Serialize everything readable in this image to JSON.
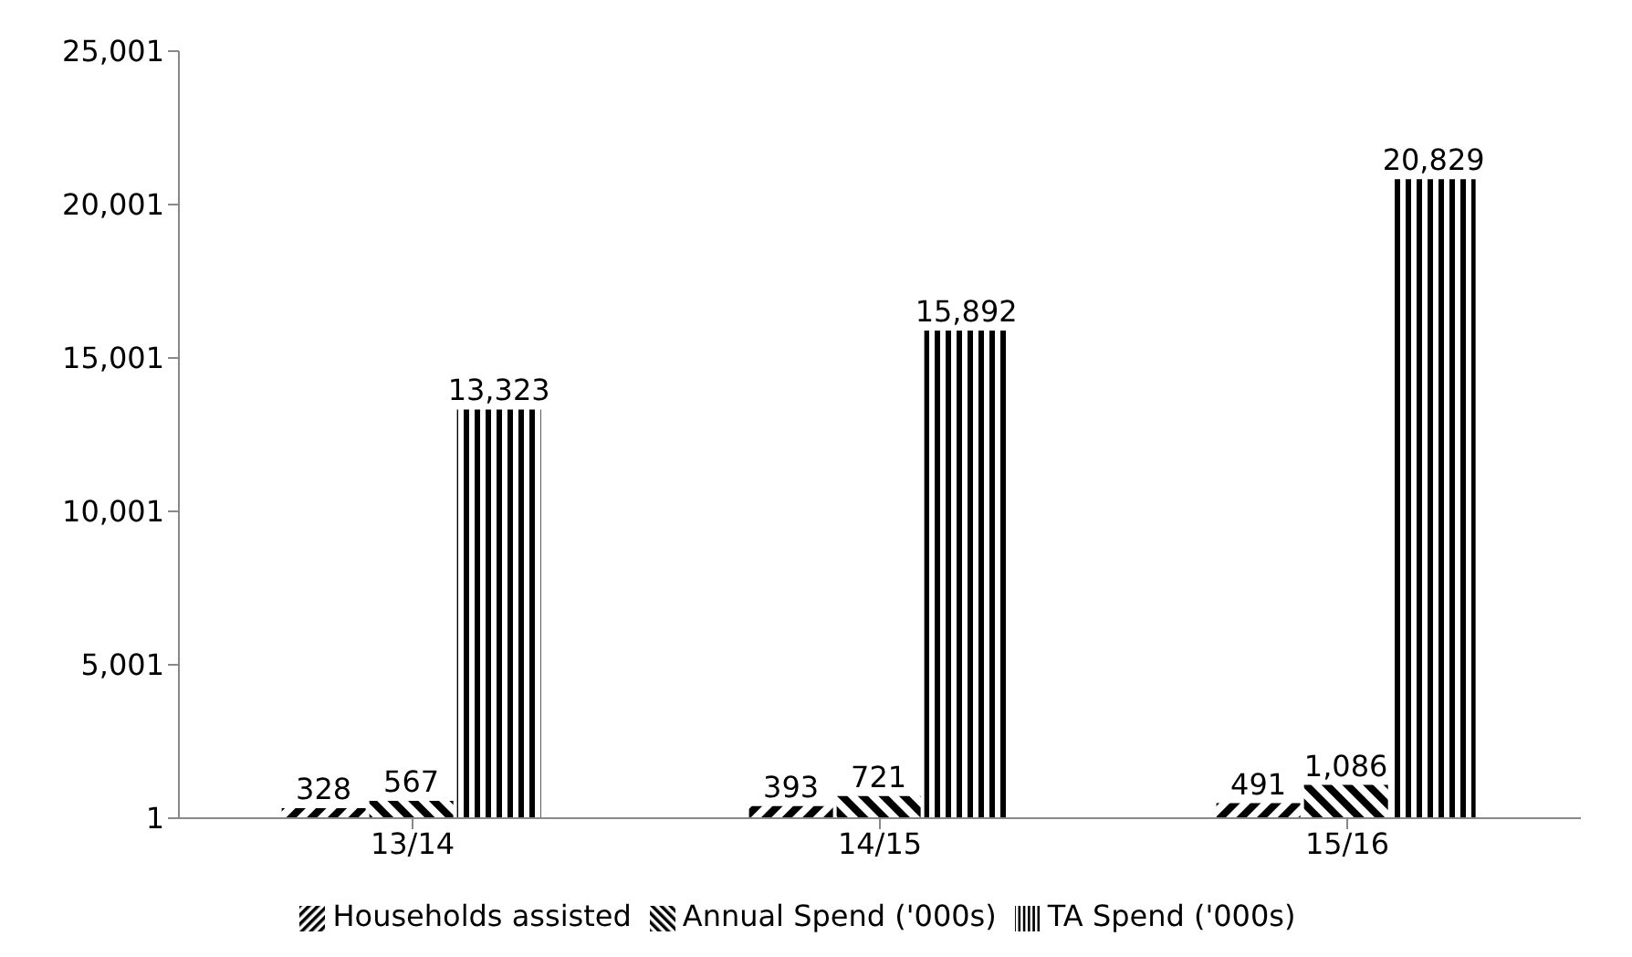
{
  "chart_data": {
    "type": "bar",
    "categories": [
      "13/14",
      "14/15",
      "15/16"
    ],
    "series": [
      {
        "name": "Households assisted",
        "color": "#000000",
        "values": [
          328,
          393,
          491
        ],
        "value_labels": [
          "328",
          "393",
          "491"
        ]
      },
      {
        "name": "Annual Spend ('000s)",
        "color": "#000000",
        "values": [
          567,
          721,
          1086
        ],
        "value_labels": [
          "567",
          "721",
          "1,086"
        ]
      },
      {
        "name": "TA Spend ('000s)",
        "color": "#000000",
        "values": [
          13323,
          15892,
          20829
        ],
        "value_labels": [
          "13,323",
          "15,892",
          "20,829"
        ]
      }
    ],
    "ylim": [
      1,
      25001
    ],
    "yticks": [
      {
        "value": 1,
        "label": "1"
      },
      {
        "value": 5001,
        "label": "5,001"
      },
      {
        "value": 10001,
        "label": "10,001"
      },
      {
        "value": 15001,
        "label": "15,001"
      },
      {
        "value": 20001,
        "label": "20,001"
      },
      {
        "value": 25001,
        "label": "25,001"
      }
    ],
    "legend": "bottom",
    "grid": false
  }
}
